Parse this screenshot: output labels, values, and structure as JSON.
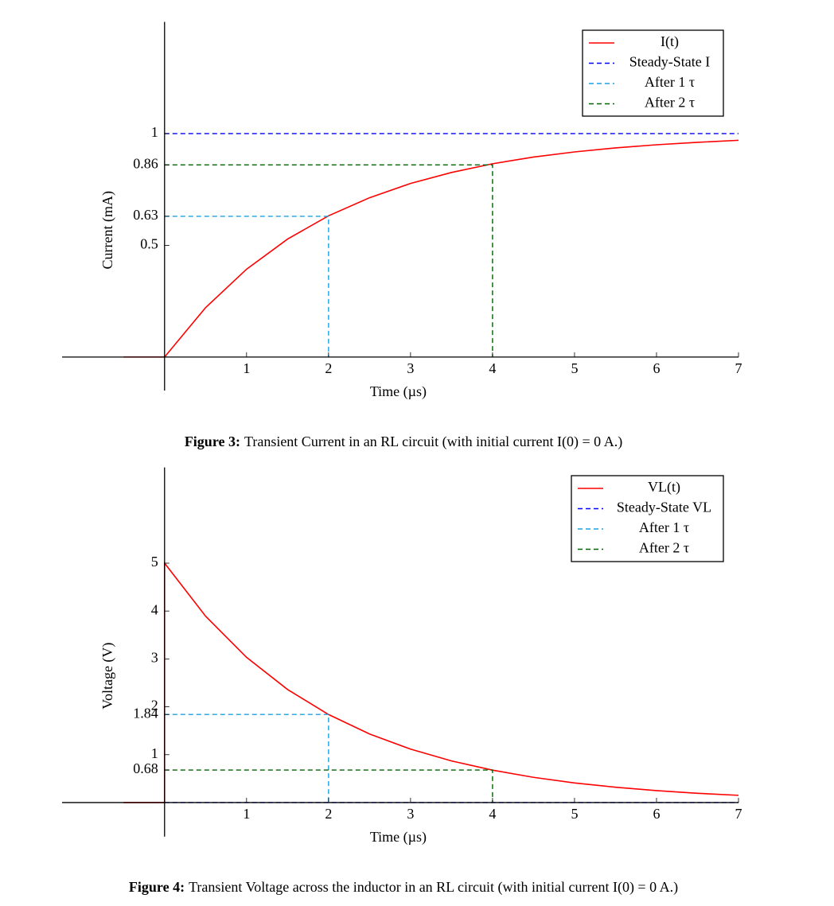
{
  "chart_data": [
    {
      "type": "line",
      "x_label": "Time (µs)",
      "y_label": "Current (mA)",
      "xlim": [
        -1.25,
        7
      ],
      "ylim": [
        -0.15,
        1.5
      ],
      "xticks": [
        1,
        2,
        3,
        4,
        5,
        6,
        7
      ],
      "yticks": [
        0.5,
        0.63,
        0.86,
        1
      ],
      "legend": "upper right",
      "series": [
        {
          "name": "I(t)",
          "color": "#ff0000",
          "dashed": false,
          "x": [
            -0.5,
            0,
            0.5,
            1,
            1.5,
            2,
            2.5,
            3,
            3.5,
            4,
            4.5,
            5,
            5.5,
            6,
            6.5,
            7
          ],
          "values": [
            0,
            0,
            0.221,
            0.393,
            0.528,
            0.632,
            0.713,
            0.777,
            0.826,
            0.865,
            0.895,
            0.918,
            0.936,
            0.95,
            0.961,
            0.97
          ]
        },
        {
          "name": "Steady-State I",
          "color": "#0000ff",
          "dashed": true,
          "x": [
            0,
            7
          ],
          "values": [
            1,
            1
          ]
        },
        {
          "name": "After 1 τ",
          "color": "#1ba1e2",
          "dashed": true,
          "x": [
            0,
            2,
            2
          ],
          "values": [
            0.63,
            0.63,
            0
          ]
        },
        {
          "name": "After 2 τ",
          "color": "#006400",
          "dashed": true,
          "x": [
            0,
            4,
            4
          ],
          "values": [
            0.86,
            0.86,
            0
          ]
        }
      ],
      "caption": {
        "label": "Figure 3:",
        "text": "Transient Current in an RL circuit (with initial current I(0) = 0 A.)"
      }
    },
    {
      "type": "line",
      "x_label": "Time (µs)",
      "y_label": "Voltage (V)",
      "xlim": [
        -1.25,
        7
      ],
      "ylim": [
        -0.71,
        7
      ],
      "xticks": [
        1,
        2,
        3,
        4,
        5,
        6,
        7
      ],
      "yticks": [
        0.68,
        1,
        1.84,
        2,
        3,
        4,
        5
      ],
      "legend": "upper right",
      "series": [
        {
          "name": "VL(t)",
          "color": "#ff0000",
          "dashed": false,
          "x": [
            -0.5,
            0,
            0,
            0.5,
            1,
            1.5,
            2,
            2.5,
            3,
            3.5,
            4,
            4.5,
            5,
            5.5,
            6,
            6.5,
            7
          ],
          "values": [
            0,
            0,
            5,
            3.894,
            3.033,
            2.362,
            1.839,
            1.433,
            1.116,
            0.869,
            0.677,
            0.527,
            0.41,
            0.32,
            0.249,
            0.194,
            0.151
          ]
        },
        {
          "name": "Steady-State VL",
          "color": "#0000ff",
          "dashed": true,
          "x": [
            0,
            7
          ],
          "values": [
            0,
            0
          ]
        },
        {
          "name": "After 1 τ",
          "color": "#1ba1e2",
          "dashed": true,
          "x": [
            0,
            2,
            2
          ],
          "values": [
            1.84,
            1.84,
            0
          ]
        },
        {
          "name": "After 2 τ",
          "color": "#006400",
          "dashed": true,
          "x": [
            0,
            4,
            4
          ],
          "values": [
            0.68,
            0.68,
            0
          ]
        }
      ],
      "caption": {
        "label": "Figure 4:",
        "text": "Transient Voltage across the inductor in an RL circuit (with initial current I(0) = 0 A.)"
      }
    }
  ]
}
